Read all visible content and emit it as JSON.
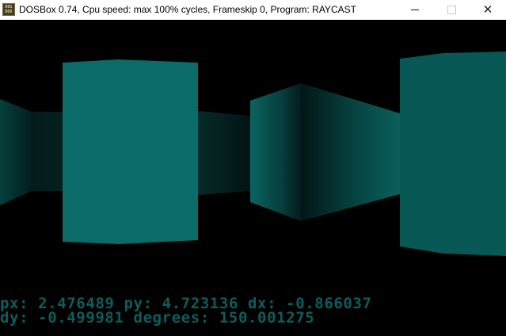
{
  "window": {
    "title": "DOSBox 0.74, Cpu speed: max 100% cycles, Frameskip  0, Program:  RAYCAST",
    "icon_text": "DOS BOX",
    "controls": {
      "minimize": "minimize-icon",
      "maximize": "maximize-icon",
      "close": "close-icon"
    },
    "close_glyph": "✕"
  },
  "scene": {
    "background": "#000000",
    "wall_colors": {
      "bright": "#0b6b69",
      "dark": "#042a28",
      "mid": "#085855"
    }
  },
  "hud": {
    "line1": "px: 2.476489 py: 4.723136 dx: -0.866037",
    "line2": "dy: -0.499981 degrees: 150.001275",
    "color": "#0a5e5c"
  }
}
